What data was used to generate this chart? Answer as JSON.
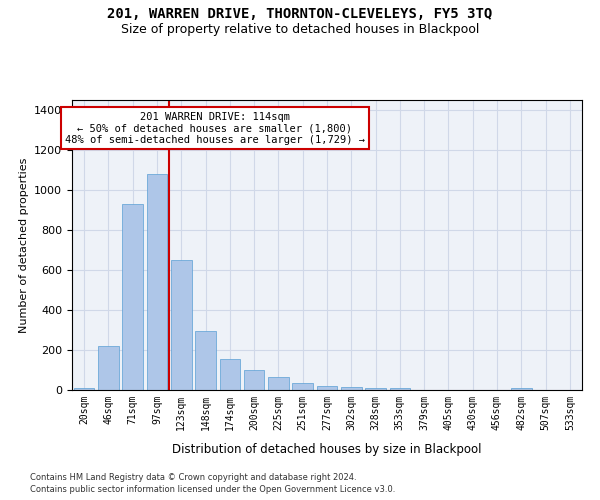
{
  "title": "201, WARREN DRIVE, THORNTON-CLEVELEYS, FY5 3TQ",
  "subtitle": "Size of property relative to detached houses in Blackpool",
  "xlabel": "Distribution of detached houses by size in Blackpool",
  "ylabel": "Number of detached properties",
  "bar_categories": [
    "20sqm",
    "46sqm",
    "71sqm",
    "97sqm",
    "123sqm",
    "148sqm",
    "174sqm",
    "200sqm",
    "225sqm",
    "251sqm",
    "277sqm",
    "302sqm",
    "328sqm",
    "353sqm",
    "379sqm",
    "405sqm",
    "430sqm",
    "456sqm",
    "482sqm",
    "507sqm",
    "533sqm"
  ],
  "bar_values": [
    10,
    220,
    930,
    1080,
    650,
    295,
    155,
    100,
    65,
    35,
    20,
    15,
    12,
    10,
    0,
    0,
    0,
    0,
    10,
    0,
    0
  ],
  "bar_color": "#aec6e8",
  "bar_edge_color": "#5a9fd4",
  "grid_color": "#d0d8e8",
  "background_color": "#eef2f8",
  "vline_x_index": 3,
  "vline_color": "#cc0000",
  "annotation_text": "201 WARREN DRIVE: 114sqm\n← 50% of detached houses are smaller (1,800)\n48% of semi-detached houses are larger (1,729) →",
  "annotation_box_color": "#ffffff",
  "annotation_box_edge": "#cc0000",
  "ylim": [
    0,
    1450
  ],
  "yticks": [
    0,
    200,
    400,
    600,
    800,
    1000,
    1200,
    1400
  ],
  "footnote1": "Contains HM Land Registry data © Crown copyright and database right 2024.",
  "footnote2": "Contains public sector information licensed under the Open Government Licence v3.0."
}
